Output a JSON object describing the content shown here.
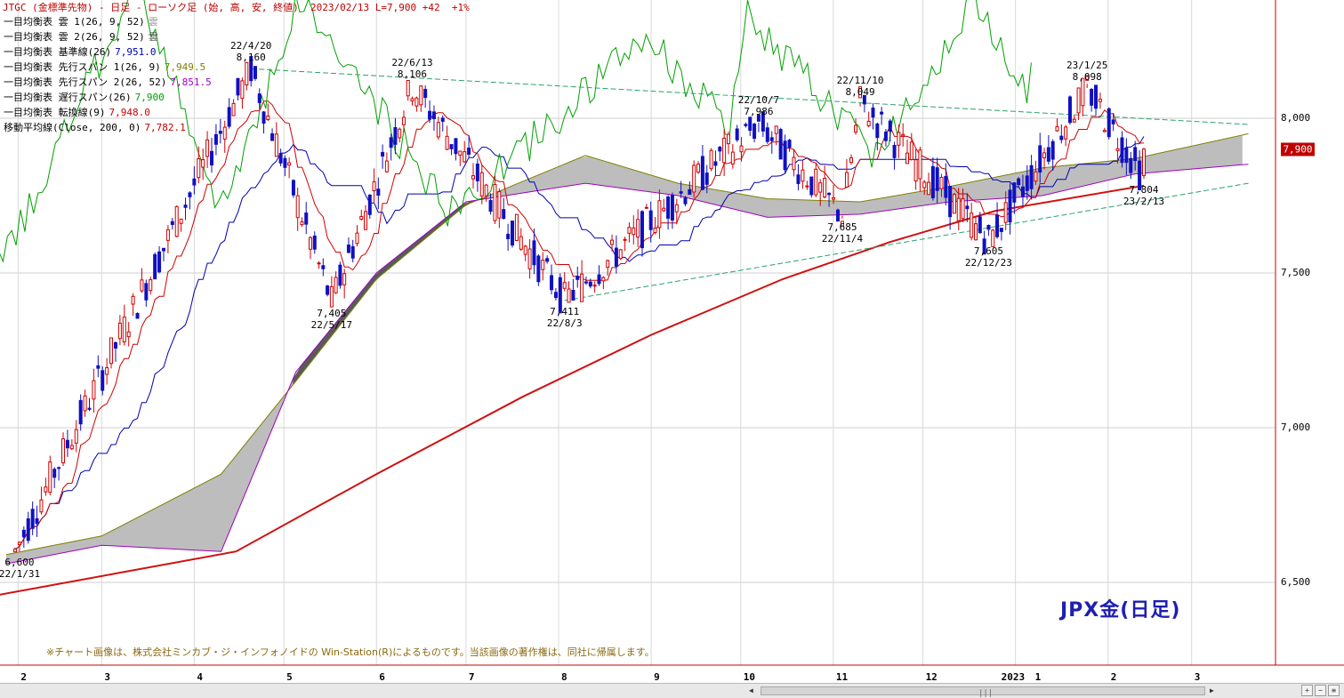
{
  "header": {
    "title": "JTGC (金標準先物) - 日足 - ローソク足 (始, 高, 安, 終値)",
    "date": "2023/02/13",
    "last": "L=7,900",
    "change": "+42",
    "change_pct": "+1%"
  },
  "indicators": [
    {
      "label": "一目均衡表 雲 1(26, 9, 52)",
      "value": "雲",
      "color": "#999999"
    },
    {
      "label": "一目均衡表 雲 2(26, 9, 52)",
      "value": "雲",
      "color": "#555555"
    },
    {
      "label": "一目均衡表 基準線(26)",
      "value": "7,951.0",
      "color": "#0000b4"
    },
    {
      "label": "一目均衡表 先行スパン 1(26, 9)",
      "value": "7,949.5",
      "color": "#808000"
    },
    {
      "label": "一目均衡表 先行スパン 2(26, 52)",
      "value": "7,851.5",
      "color": "#a000c0"
    },
    {
      "label": "一目均衡表 遅行スパン(26)",
      "value": "7,900",
      "color": "#00a000"
    },
    {
      "label": "一目均衡表 転換線(9)",
      "value": "7,948.0",
      "color": "#d00000"
    },
    {
      "label": "移動平均線(Close, 200, 0)",
      "value": "7,782.1",
      "color": "#c00000"
    }
  ],
  "annotations": [
    {
      "value": "8,160",
      "date": "22/4/20",
      "pos": "above"
    },
    {
      "value": "8,106",
      "date": "22/6/13",
      "pos": "above"
    },
    {
      "value": "7,986",
      "date": "22/10/7",
      "pos": "above"
    },
    {
      "value": "8,049",
      "date": "22/11/10",
      "pos": "above"
    },
    {
      "value": "8,098",
      "date": "23/1/25",
      "pos": "above"
    },
    {
      "value": "6,600",
      "date": "22/1/31",
      "pos": "below"
    },
    {
      "value": "7,405",
      "date": "22/5/17",
      "pos": "below"
    },
    {
      "value": "7,411",
      "date": "22/8/3",
      "pos": "below"
    },
    {
      "value": "7,685",
      "date": "22/11/4",
      "pos": "below"
    },
    {
      "value": "7,605",
      "date": "22/12/23",
      "pos": "below"
    },
    {
      "value": "7,804",
      "date": "23/2/13",
      "pos": "below"
    }
  ],
  "last_price_badge": "7,900",
  "watermark": "JPX金(日足)",
  "copyright": "※チャート画像は、株式会社ミンカブ・ジ・インフォノイドの Win-Station(R)によるものです。当該画像の著作権は、同社に帰属します。",
  "chart_data": {
    "type": "candlestick",
    "title": "JTGC (金標準先物) - 日足 - ローソク足 (始, 高, 安, 終値)",
    "y_ticks": [
      "8,000",
      "7,500",
      "7,000",
      "6,500"
    ],
    "x_ticks": [
      "2",
      "3",
      "4",
      "5",
      "6",
      "7",
      "8",
      "9",
      "10",
      "11",
      "12",
      "2023",
      "1",
      "2",
      "3"
    ],
    "ylim": [
      6250,
      8350
    ],
    "price_pivots": [
      {
        "date": "2022-01-31",
        "price": 6600,
        "kind": "low"
      },
      {
        "date": "2022-04-20",
        "price": 8160,
        "kind": "high"
      },
      {
        "date": "2022-05-17",
        "price": 7405,
        "kind": "low"
      },
      {
        "date": "2022-06-13",
        "price": 8106,
        "kind": "high"
      },
      {
        "date": "2022-08-03",
        "price": 7411,
        "kind": "low"
      },
      {
        "date": "2022-10-07",
        "price": 7986,
        "kind": "high"
      },
      {
        "date": "2022-11-04",
        "price": 7685,
        "kind": "low"
      },
      {
        "date": "2022-11-10",
        "price": 8049,
        "kind": "high"
      },
      {
        "date": "2022-12-23",
        "price": 7605,
        "kind": "low"
      },
      {
        "date": "2023-01-25",
        "price": 8098,
        "kind": "high"
      },
      {
        "date": "2023-02-13",
        "price": 7804,
        "kind": "low"
      }
    ],
    "last_close": {
      "date": "2023-02-13",
      "price": 7900
    },
    "ma200": {
      "name": "移動平均線(Close, 200, 0)",
      "last": 7782.1,
      "points": [
        [
          "2022-01-20",
          6450
        ],
        [
          "2022-04-15",
          6600
        ],
        [
          "2022-06-01",
          6850
        ],
        [
          "2022-07-20",
          7100
        ],
        [
          "2022-09-01",
          7300
        ],
        [
          "2022-10-15",
          7480
        ],
        [
          "2022-11-20",
          7600
        ],
        [
          "2022-12-25",
          7700
        ],
        [
          "2023-02-13",
          7782.1
        ]
      ]
    },
    "cloud_span1": {
      "name": "先行スパン 1(26, 9)",
      "last": 7949.5,
      "points": [
        [
          "2022-01-28",
          6590
        ],
        [
          "2022-03-01",
          6650
        ],
        [
          "2022-04-10",
          6850
        ],
        [
          "2022-05-05",
          7150
        ],
        [
          "2022-06-01",
          7480
        ],
        [
          "2022-07-01",
          7720
        ],
        [
          "2022-08-10",
          7880
        ],
        [
          "2022-09-10",
          7790
        ],
        [
          "2022-10-10",
          7740
        ],
        [
          "2022-11-10",
          7730
        ],
        [
          "2022-12-10",
          7780
        ],
        [
          "2023-01-10",
          7840
        ],
        [
          "2023-02-10",
          7870
        ],
        [
          "2023-03-20",
          7950
        ]
      ]
    },
    "cloud_span2": {
      "name": "先行スパン 2(26, 52)",
      "last": 7851.5,
      "points": [
        [
          "2022-01-28",
          6560
        ],
        [
          "2022-03-01",
          6620
        ],
        [
          "2022-04-10",
          6600
        ],
        [
          "2022-05-05",
          7180
        ],
        [
          "2022-06-01",
          7500
        ],
        [
          "2022-07-01",
          7730
        ],
        [
          "2022-08-10",
          7790
        ],
        [
          "2022-09-10",
          7750
        ],
        [
          "2022-10-10",
          7680
        ],
        [
          "2022-11-10",
          7690
        ],
        [
          "2022-12-10",
          7730
        ],
        [
          "2023-01-10",
          7750
        ],
        [
          "2023-02-10",
          7820
        ],
        [
          "2023-03-20",
          7851.5
        ]
      ]
    },
    "kijun": {
      "name": "基準線(26)",
      "last": 7951.0
    },
    "tenkan": {
      "name": "転換線(9)",
      "last": 7948.0
    },
    "chikou": {
      "name": "遅行スパン(26)",
      "last": 7900
    },
    "trendlines": [
      {
        "from": [
          "2022-04-20",
          8160
        ],
        "to": [
          "2023-03-20",
          7980
        ],
        "style": "dashed"
      },
      {
        "from": [
          "2022-08-03",
          7411
        ],
        "to": [
          "2023-03-20",
          7790
        ],
        "style": "dashed"
      }
    ]
  }
}
